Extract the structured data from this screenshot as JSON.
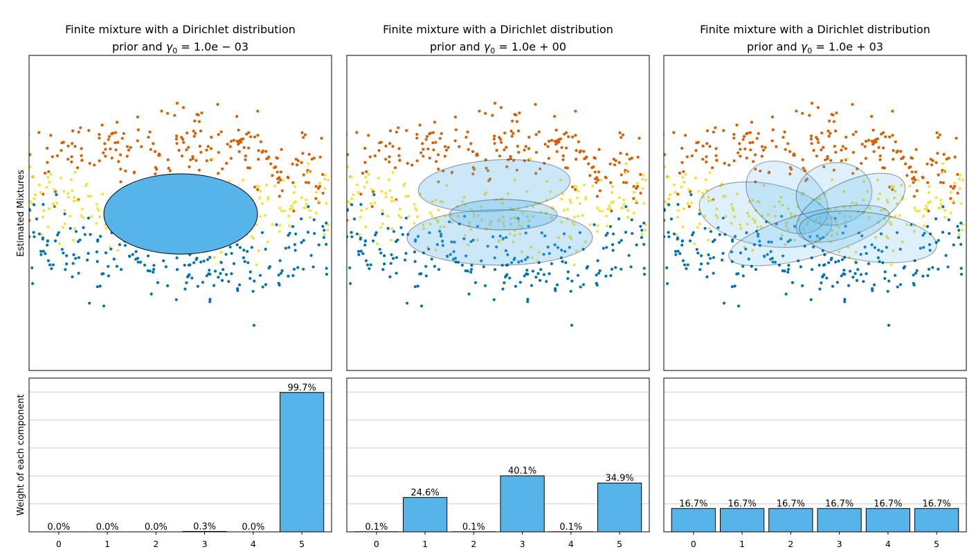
{
  "chart_data": [
    {
      "type": "bar",
      "title_line1": "Finite mixture with a Dirichlet distribution",
      "title_line2_prefix": "prior and ",
      "gamma_symbol": "γ",
      "gamma_subscript": "0",
      "gamma_value": "= 1.0e − 03",
      "scatter_ylabel": "Estimated Mixtures",
      "ylabel": "Weight of each component",
      "categories": [
        "0",
        "1",
        "2",
        "3",
        "4",
        "5"
      ],
      "values": [
        0.0,
        0.0,
        0.0,
        0.003,
        0.0,
        0.997
      ],
      "data_labels": [
        "0.0%",
        "0.0%",
        "0.0%",
        "0.3%",
        "0.0%",
        "99.7%"
      ],
      "ylim": [
        0,
        1.1
      ],
      "grid": "y"
    },
    {
      "type": "bar",
      "title_line1": "Finite mixture with a Dirichlet distribution",
      "title_line2_prefix": "prior and ",
      "gamma_symbol": "γ",
      "gamma_subscript": "0",
      "gamma_value": "= 1.0e + 00",
      "categories": [
        "0",
        "1",
        "2",
        "3",
        "4",
        "5"
      ],
      "values": [
        0.001,
        0.246,
        0.001,
        0.401,
        0.001,
        0.349
      ],
      "data_labels": [
        "0.1%",
        "24.6%",
        "0.1%",
        "40.1%",
        "0.1%",
        "34.9%"
      ],
      "ylim": [
        0,
        1.1
      ],
      "grid": "y"
    },
    {
      "type": "bar",
      "title_line1": "Finite mixture with a Dirichlet distribution",
      "title_line2_prefix": "prior and ",
      "gamma_symbol": "γ",
      "gamma_subscript": "0",
      "gamma_value": "= 1.0e + 03",
      "categories": [
        "0",
        "1",
        "2",
        "3",
        "4",
        "5"
      ],
      "values": [
        0.167,
        0.167,
        0.167,
        0.167,
        0.167,
        0.167
      ],
      "data_labels": [
        "16.7%",
        "16.7%",
        "16.7%",
        "16.7%",
        "16.7%",
        "16.7%"
      ],
      "ylim": [
        0,
        1.1
      ],
      "grid": "y"
    }
  ],
  "colors": {
    "bar": "#56B4E9",
    "cluster_blue": "#0072B2",
    "cluster_orange": "#D55E00",
    "cluster_yellow": "#F0E442",
    "grid": "#cccccc"
  }
}
